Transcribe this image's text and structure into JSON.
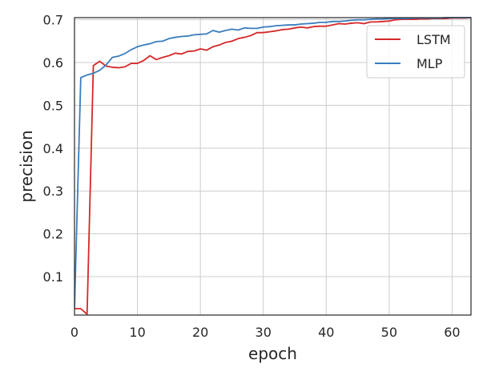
{
  "chart_data": {
    "type": "line",
    "xlabel": "epoch",
    "ylabel": "precision",
    "xlim": [
      0,
      63
    ],
    "ylim": [
      0.01,
      0.705
    ],
    "xticks": [
      0,
      10,
      20,
      30,
      40,
      50,
      60
    ],
    "xtick_labels": [
      "0",
      "10",
      "20",
      "30",
      "40",
      "50",
      "60"
    ],
    "yticks": [
      0.1,
      0.2,
      0.3,
      0.4,
      0.5,
      0.6,
      0.7
    ],
    "ytick_labels": [
      "0.1",
      "0.2",
      "0.3",
      "0.4",
      "0.5",
      "0.6",
      "0.7"
    ],
    "grid": true,
    "legend_position": "top-right",
    "x": [
      0,
      1,
      2,
      3,
      4,
      5,
      6,
      7,
      8,
      9,
      10,
      11,
      12,
      13,
      14,
      15,
      16,
      17,
      18,
      19,
      20,
      21,
      22,
      23,
      24,
      25,
      26,
      27,
      28,
      29,
      30,
      31,
      32,
      33,
      34,
      35,
      36,
      37,
      38,
      39,
      40,
      41,
      42,
      43,
      44,
      45,
      46,
      47,
      48,
      49,
      50,
      51,
      52,
      53,
      54,
      55,
      56,
      57,
      58,
      59,
      60,
      61,
      62,
      63
    ],
    "series": [
      {
        "name": "LSTM",
        "color": "#d62728",
        "values": [
          0.025,
          0.025,
          0.012,
          0.593,
          0.603,
          0.592,
          0.589,
          0.588,
          0.59,
          0.598,
          0.598,
          0.605,
          0.616,
          0.607,
          0.612,
          0.616,
          0.622,
          0.62,
          0.626,
          0.627,
          0.632,
          0.629,
          0.637,
          0.641,
          0.647,
          0.65,
          0.656,
          0.659,
          0.663,
          0.67,
          0.67,
          0.672,
          0.674,
          0.677,
          0.678,
          0.681,
          0.683,
          0.681,
          0.684,
          0.685,
          0.685,
          0.688,
          0.691,
          0.69,
          0.692,
          0.693,
          0.691,
          0.695,
          0.695,
          0.696,
          0.697,
          0.7,
          0.701,
          0.701,
          0.701,
          0.702,
          0.702,
          0.703,
          0.703,
          0.703,
          0.704,
          0.704,
          0.704,
          0.705
        ]
      },
      {
        "name": "MLP",
        "color": "#3b7dbe",
        "values": [
          0.025,
          0.565,
          0.571,
          0.575,
          0.582,
          0.594,
          0.612,
          0.615,
          0.621,
          0.63,
          0.637,
          0.641,
          0.644,
          0.649,
          0.65,
          0.656,
          0.659,
          0.661,
          0.662,
          0.665,
          0.666,
          0.667,
          0.675,
          0.671,
          0.675,
          0.678,
          0.676,
          0.681,
          0.68,
          0.68,
          0.683,
          0.684,
          0.686,
          0.687,
          0.688,
          0.688,
          0.69,
          0.691,
          0.692,
          0.694,
          0.694,
          0.696,
          0.696,
          0.697,
          0.699,
          0.7,
          0.7,
          0.701,
          0.702,
          0.702,
          0.703,
          0.703,
          0.703,
          0.703,
          0.704,
          0.704,
          0.704,
          0.704,
          0.704,
          0.705,
          0.705,
          0.705,
          0.705,
          0.705
        ]
      }
    ]
  }
}
